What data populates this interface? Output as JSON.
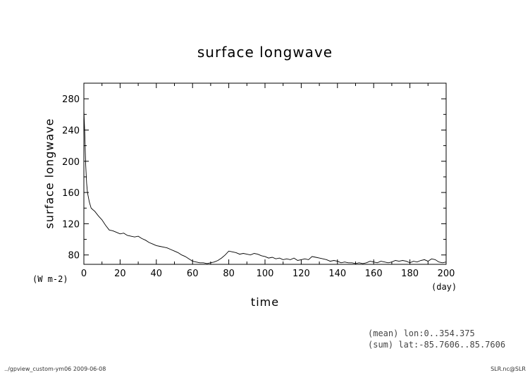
{
  "chart_data": {
    "type": "line",
    "title": "surface longwave",
    "xlabel": "time",
    "ylabel": "surface longwave",
    "x_unit": "(day)",
    "y_unit": "(W m-2)",
    "xlim": [
      0,
      200
    ],
    "ylim": [
      68,
      300
    ],
    "x_ticks": [
      "0",
      "20",
      "40",
      "60",
      "80",
      "100",
      "120",
      "140",
      "160",
      "180",
      "200"
    ],
    "y_ticks": [
      "80",
      "120",
      "160",
      "200",
      "240",
      "280"
    ],
    "grid": false,
    "series": [
      {
        "color": "#000000",
        "x": [
          0,
          0.5,
          1,
          1.5,
          2,
          3,
          4,
          5,
          6,
          8,
          10,
          12,
          14,
          16,
          18,
          20,
          22,
          24,
          26,
          28,
          30,
          32,
          34,
          36,
          38,
          40,
          42,
          44,
          46,
          48,
          50,
          52,
          54,
          56,
          58,
          60,
          62,
          64,
          66,
          68,
          70,
          72,
          74,
          76,
          78,
          80,
          82,
          84,
          86,
          88,
          90,
          92,
          94,
          96,
          98,
          100,
          102,
          104,
          106,
          108,
          110,
          112,
          114,
          116,
          118,
          120,
          122,
          124,
          126,
          128,
          130,
          132,
          134,
          136,
          138,
          140,
          142,
          144,
          146,
          148,
          150,
          152,
          154,
          156,
          158,
          160,
          162,
          164,
          166,
          168,
          170,
          172,
          174,
          176,
          178,
          180,
          182,
          184,
          186,
          188,
          190,
          192,
          194,
          196,
          198,
          200
        ],
        "y": [
          265,
          235,
          195,
          172,
          160,
          148,
          140,
          138,
          136,
          130,
          125,
          118,
          112,
          111,
          109,
          107,
          108,
          105,
          104,
          103,
          104,
          101,
          99,
          96,
          94,
          92,
          91,
          90,
          89,
          87,
          85,
          83,
          80,
          78,
          75,
          72,
          71,
          70,
          70,
          69,
          70,
          71,
          73,
          76,
          80,
          85,
          84,
          83,
          81,
          82,
          81,
          80,
          82,
          81,
          79,
          78,
          76,
          77,
          75,
          76,
          74,
          75,
          74,
          76,
          73,
          74,
          75,
          74,
          78,
          77,
          76,
          75,
          74,
          72,
          73,
          72,
          70,
          71,
          70,
          70,
          69,
          70,
          69,
          70,
          72,
          71,
          70,
          72,
          71,
          70,
          71,
          73,
          72,
          73,
          72,
          70,
          72,
          71,
          73,
          74,
          72,
          75,
          74,
          71,
          70,
          71
        ]
      }
    ]
  },
  "notes": {
    "mean": "(mean) lon:0..354.375",
    "sum": "(sum) lat:-85.7606..85.7606"
  },
  "footer": {
    "left": "../gpview_custom-ym06  2009-06-08",
    "right": "SLR.nc@SLR"
  }
}
